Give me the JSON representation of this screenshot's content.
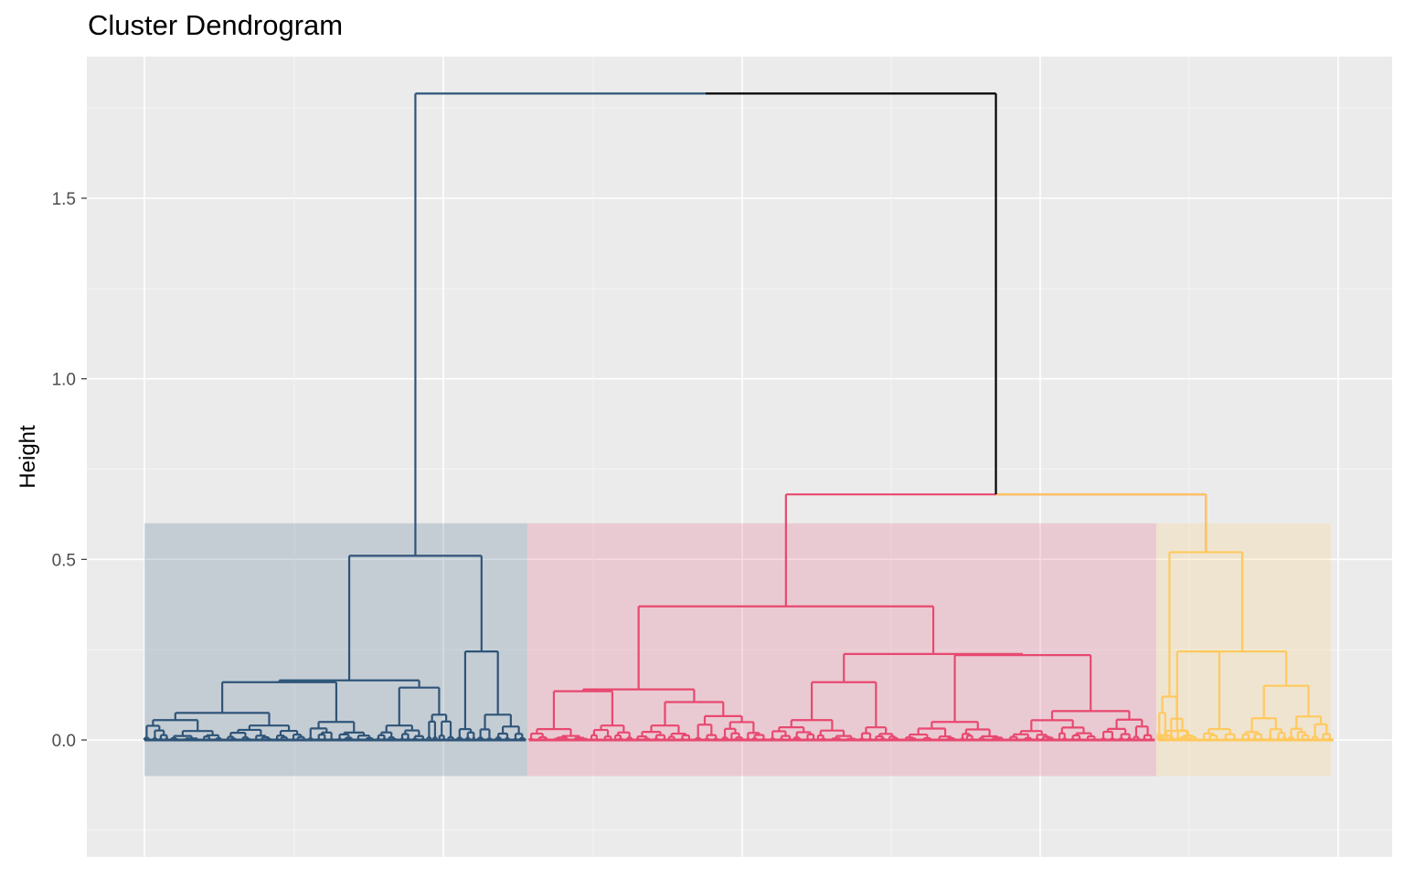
{
  "chart_data": {
    "type": "dendrogram",
    "title": "Cluster Dendrogram",
    "xlabel": "",
    "ylabel": "Height",
    "ylim": [
      -0.25,
      1.85
    ],
    "yticks": [
      0.0,
      0.5,
      1.0,
      1.5
    ],
    "ytick_labels": [
      "0.0",
      "0.5",
      "1.0",
      "1.5"
    ],
    "grid": true,
    "n_leaves": 400,
    "n_clusters": 3,
    "clusters": [
      {
        "id": 1,
        "color": "#2E5478",
        "leaf_range": [
          1,
          129
        ]
      },
      {
        "id": 2,
        "color": "#E84870",
        "leaf_range": [
          130,
          340
        ]
      },
      {
        "id": 3,
        "color": "#FFC95E",
        "leaf_range": [
          341,
          400
        ]
      }
    ],
    "merges": [
      {
        "cluster": "root",
        "height": 1.79
      },
      {
        "cluster": 1,
        "height": 0.51
      },
      {
        "cluster": 2,
        "height": 0.68
      },
      {
        "cluster": 2,
        "height": 0.37
      },
      {
        "cluster": 3,
        "height": 0.52
      }
    ],
    "root_color": "#000000"
  }
}
